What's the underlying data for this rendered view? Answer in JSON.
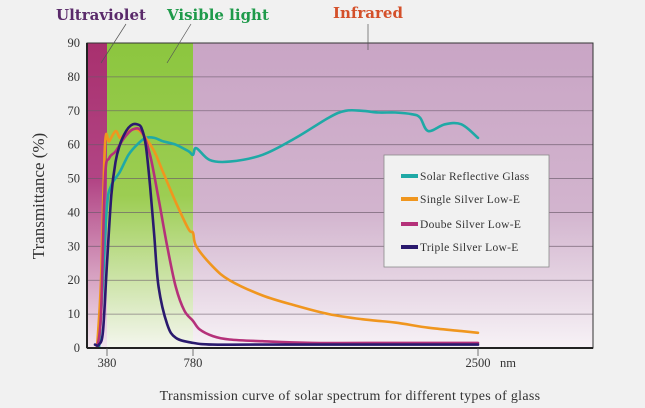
{
  "chart_data": {
    "type": "line",
    "title": "Transmission curve of solar spectrum for different types of glass",
    "xlabel": "nm",
    "ylabel": "Transmittance (%)",
    "ylim": [
      0,
      90
    ],
    "yticks": [
      0,
      10,
      20,
      30,
      40,
      50,
      60,
      70,
      80,
      90
    ],
    "xticks": [
      380,
      780,
      2500
    ],
    "xtick_labels": [
      "380",
      "780",
      "2500"
    ],
    "x_unit_label": "nm",
    "grid": true,
    "legend_position": "center-right",
    "regions": [
      {
        "name": "Ultraviolet",
        "from": 280,
        "to": 380,
        "color": "#a8306e",
        "label_color": "#5a2a6a"
      },
      {
        "name": "Visible light",
        "from": 380,
        "to": 780,
        "color": "#8cc63f",
        "label_color": "#1e9a4a"
      },
      {
        "name": "Infrared",
        "from": 780,
        "to": 2500,
        "color": "#c8a4c4",
        "label_color": "#d4502a"
      }
    ],
    "series": [
      {
        "name": "Solar Reflective Glass",
        "color": "#1fa9a6",
        "x": [
          340,
          360,
          380,
          400,
          440,
          480,
          520,
          560,
          600,
          640,
          700,
          760,
          780,
          800,
          880,
          1000,
          1200,
          1400,
          1600,
          1700,
          1800,
          1900,
          2000,
          2100,
          2150,
          2200,
          2300,
          2400,
          2500
        ],
        "y": [
          0,
          20,
          42,
          48,
          52,
          57,
          60,
          62,
          62,
          61,
          60,
          58,
          57,
          59,
          55.5,
          55,
          57,
          62,
          68,
          70,
          70,
          69.5,
          69.5,
          69,
          68,
          64,
          66,
          66,
          62
        ]
      },
      {
        "name": "Single Silver Low-E",
        "color": "#f0961e",
        "x": [
          330,
          350,
          370,
          390,
          420,
          440,
          460,
          480,
          520,
          560,
          600,
          640,
          700,
          760,
          780,
          800,
          900,
          1000,
          1200,
          1400,
          1600,
          1800,
          2000,
          2200,
          2400,
          2500
        ],
        "y": [
          0,
          20,
          60,
          61,
          64,
          62,
          63,
          64,
          64.5,
          62,
          58,
          52,
          43,
          35,
          34,
          30,
          24,
          20,
          15.5,
          12.5,
          10,
          8.5,
          7.5,
          6,
          5,
          4.5
        ]
      },
      {
        "name": "Doube Silver Low-E",
        "color": "#b5317a",
        "x": [
          330,
          350,
          370,
          390,
          420,
          460,
          500,
          540,
          580,
          620,
          660,
          700,
          740,
          780,
          820,
          900,
          1000,
          1200,
          1500,
          2000,
          2500
        ],
        "y": [
          0,
          10,
          50,
          56,
          58,
          62,
          64.5,
          64,
          57,
          44,
          30,
          18,
          11,
          8,
          5.5,
          3.5,
          2.5,
          2,
          1.5,
          1.5,
          1.5
        ]
      },
      {
        "name": "Triple Silver Low-E",
        "color": "#2a1a6e",
        "x": [
          320,
          340,
          360,
          380,
          400,
          420,
          440,
          460,
          480,
          500,
          520,
          540,
          560,
          580,
          600,
          620,
          660,
          700,
          780,
          900,
          1200,
          2500
        ],
        "y": [
          1,
          1,
          5,
          25,
          45,
          55,
          60,
          63,
          65,
          66,
          66,
          65,
          60,
          48,
          33,
          18,
          7,
          3,
          1.5,
          1,
          1,
          1
        ]
      }
    ]
  }
}
